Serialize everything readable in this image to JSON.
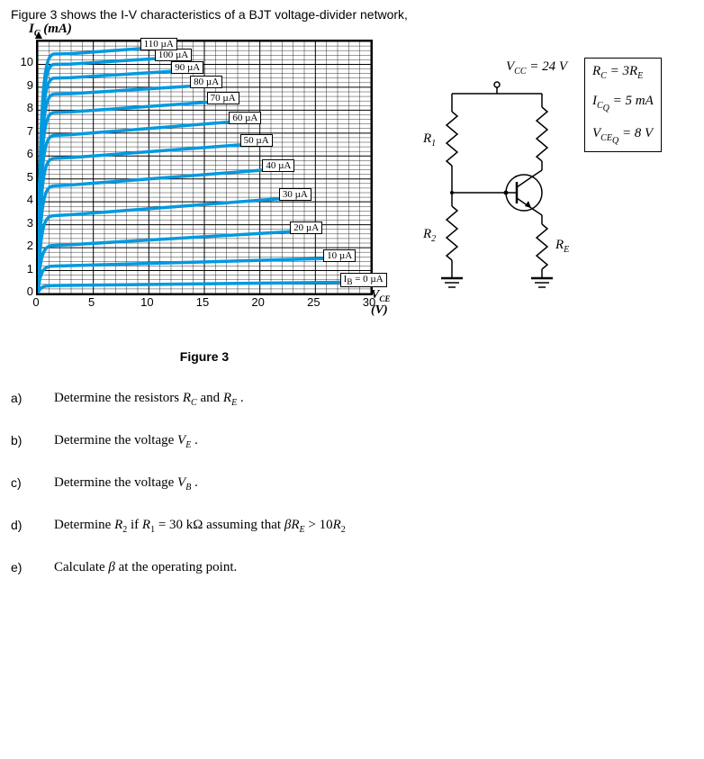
{
  "intro": "Figure 3 shows the I-V characteristics of a BJT voltage-divider network,",
  "chart": {
    "type": "line",
    "y_title_html": "I<sub>C</sub> (mA)",
    "x_title_html": "V<sub>CE</sub> (V)",
    "xlim": [
      0,
      30
    ],
    "ylim": [
      0,
      11
    ],
    "xticks": [
      0,
      5,
      10,
      15,
      20,
      25,
      30
    ],
    "yticks": [
      0,
      1,
      2,
      3,
      4,
      5,
      6,
      7,
      8,
      9,
      10
    ],
    "x_major_step": 5,
    "x_minor_step": 1,
    "y_major_step": 1,
    "y_minor_step": 0.2,
    "grid_color": "#000000",
    "curve_color": "#0099e0",
    "background_color": "#ffffff",
    "curves": [
      {
        "label_html": "I<sub>B</sub> = 0 µA",
        "flat_y": 0.35,
        "peak_y": 0.5,
        "label_x": 29,
        "label_y": 0.5
      },
      {
        "label_html": "10 µA",
        "flat_y": 1.2,
        "peak_y": 1.55,
        "label_x": 27.5,
        "label_y": 1.55
      },
      {
        "label_html": "20 µA",
        "flat_y": 2.1,
        "peak_y": 2.75,
        "label_x": 24.5,
        "label_y": 2.75
      },
      {
        "label_html": "30 µA",
        "flat_y": 3.4,
        "peak_y": 4.2,
        "label_x": 23.5,
        "label_y": 4.2
      },
      {
        "label_html": "40 µA",
        "flat_y": 4.7,
        "peak_y": 5.45,
        "label_x": 22,
        "label_y": 5.45
      },
      {
        "label_html": "50 µA",
        "flat_y": 5.9,
        "peak_y": 6.55,
        "label_x": 20,
        "label_y": 6.55
      },
      {
        "label_html": "60 µA",
        "flat_y": 6.9,
        "peak_y": 7.55,
        "label_x": 19,
        "label_y": 7.55
      },
      {
        "label_html": "70 µA",
        "flat_y": 7.9,
        "peak_y": 8.4,
        "label_x": 17,
        "label_y": 8.4
      },
      {
        "label_html": "80 µA",
        "flat_y": 8.7,
        "peak_y": 9.1,
        "label_x": 15.5,
        "label_y": 9.1
      },
      {
        "label_html": "90 µA",
        "flat_y": 9.4,
        "peak_y": 9.75,
        "label_x": 13.8,
        "label_y": 9.75
      },
      {
        "label_html": "100 µA",
        "flat_y": 10.0,
        "peak_y": 10.3,
        "label_x": 12.3,
        "label_y": 10.3
      },
      {
        "label_html": "110 µA",
        "flat_y": 10.45,
        "peak_y": 10.75,
        "label_x": 11,
        "label_y": 10.75
      }
    ],
    "caption": "Figure 3"
  },
  "circuit": {
    "vcc": "V<sub>CC</sub> = 24 V",
    "r1": "R<sub>1</sub>",
    "r2": "R<sub>2</sub>",
    "re": "R<sub>E</sub>"
  },
  "info": {
    "row1": "R<sub>C</sub> = 3R<sub>E</sub>",
    "row2": "I<sub>C<sub>Q</sub></sub> = 5 mA",
    "row3": "V<sub>CE<sub>Q</sub></sub> = 8 V"
  },
  "questions": [
    {
      "label": "a)",
      "html": "Determine the resistors <i>R<sub>C</sub></i> and <i>R<sub>E</sub></i> ."
    },
    {
      "label": "b)",
      "html": "Determine the voltage <i>V<sub>E</sub></i> ."
    },
    {
      "label": "c)",
      "html": "Determine the voltage <i>V<sub>B</sub></i> ."
    },
    {
      "label": "d)",
      "html": "Determine <i>R</i><sub>2</sub> if <i>R</i><sub>1</sub> = 30 kΩ assuming that <i>βR<sub>E</sub></i> &gt; 10<i>R</i><sub>2</sub>"
    },
    {
      "label": "e)",
      "html": "Calculate <i>β</i> at the operating point."
    }
  ]
}
